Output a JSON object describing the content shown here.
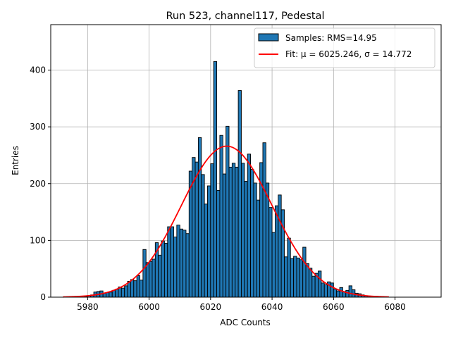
{
  "chart_data": {
    "type": "bar",
    "title": "Run 523, channel117, Pedestal",
    "xlabel": "ADC Counts",
    "ylabel": "Entries",
    "xlim": [
      5968,
      6095
    ],
    "ylim": [
      0,
      480
    ],
    "xticks": [
      5980,
      6000,
      6020,
      6040,
      6060,
      6080
    ],
    "yticks": [
      0,
      100,
      200,
      300,
      400
    ],
    "grid": true,
    "legend_position": "top-right",
    "histogram": {
      "name": "Samples: RMS=14.95",
      "color": "#1f77b4",
      "edgecolor": "#000000",
      "bin_width": 1,
      "bins": [
        {
          "x": 5979,
          "y": 1
        },
        {
          "x": 5980,
          "y": 3
        },
        {
          "x": 5981,
          "y": 4
        },
        {
          "x": 5982,
          "y": 9
        },
        {
          "x": 5983,
          "y": 10
        },
        {
          "x": 5984,
          "y": 11
        },
        {
          "x": 5985,
          "y": 7
        },
        {
          "x": 5986,
          "y": 8
        },
        {
          "x": 5987,
          "y": 9
        },
        {
          "x": 5988,
          "y": 12
        },
        {
          "x": 5989,
          "y": 14
        },
        {
          "x": 5990,
          "y": 18
        },
        {
          "x": 5991,
          "y": 16
        },
        {
          "x": 5992,
          "y": 20
        },
        {
          "x": 5993,
          "y": 28
        },
        {
          "x": 5994,
          "y": 31
        },
        {
          "x": 5995,
          "y": 29
        },
        {
          "x": 5996,
          "y": 38
        },
        {
          "x": 5997,
          "y": 30
        },
        {
          "x": 5998,
          "y": 84
        },
        {
          "x": 5999,
          "y": 61
        },
        {
          "x": 6000,
          "y": 63
        },
        {
          "x": 6001,
          "y": 67
        },
        {
          "x": 6002,
          "y": 96
        },
        {
          "x": 6003,
          "y": 74
        },
        {
          "x": 6004,
          "y": 99
        },
        {
          "x": 6005,
          "y": 95
        },
        {
          "x": 6006,
          "y": 124
        },
        {
          "x": 6007,
          "y": 124
        },
        {
          "x": 6008,
          "y": 106
        },
        {
          "x": 6009,
          "y": 127
        },
        {
          "x": 6010,
          "y": 120
        },
        {
          "x": 6011,
          "y": 118
        },
        {
          "x": 6012,
          "y": 112
        },
        {
          "x": 6013,
          "y": 222
        },
        {
          "x": 6014,
          "y": 246
        },
        {
          "x": 6015,
          "y": 238
        },
        {
          "x": 6016,
          "y": 281
        },
        {
          "x": 6017,
          "y": 216
        },
        {
          "x": 6018,
          "y": 164
        },
        {
          "x": 6019,
          "y": 196
        },
        {
          "x": 6020,
          "y": 235
        },
        {
          "x": 6021,
          "y": 415
        },
        {
          "x": 6022,
          "y": 188
        },
        {
          "x": 6023,
          "y": 285
        },
        {
          "x": 6024,
          "y": 217
        },
        {
          "x": 6025,
          "y": 301
        },
        {
          "x": 6026,
          "y": 229
        },
        {
          "x": 6027,
          "y": 236
        },
        {
          "x": 6028,
          "y": 229
        },
        {
          "x": 6029,
          "y": 364
        },
        {
          "x": 6030,
          "y": 236
        },
        {
          "x": 6031,
          "y": 204
        },
        {
          "x": 6032,
          "y": 252
        },
        {
          "x": 6033,
          "y": 225
        },
        {
          "x": 6034,
          "y": 201
        },
        {
          "x": 6035,
          "y": 171
        },
        {
          "x": 6036,
          "y": 237
        },
        {
          "x": 6037,
          "y": 272
        },
        {
          "x": 6038,
          "y": 201
        },
        {
          "x": 6039,
          "y": 158
        },
        {
          "x": 6040,
          "y": 114
        },
        {
          "x": 6041,
          "y": 161
        },
        {
          "x": 6042,
          "y": 180
        },
        {
          "x": 6043,
          "y": 154
        },
        {
          "x": 6044,
          "y": 71
        },
        {
          "x": 6045,
          "y": 104
        },
        {
          "x": 6046,
          "y": 68
        },
        {
          "x": 6047,
          "y": 72
        },
        {
          "x": 6048,
          "y": 69
        },
        {
          "x": 6049,
          "y": 66
        },
        {
          "x": 6050,
          "y": 88
        },
        {
          "x": 6051,
          "y": 59
        },
        {
          "x": 6052,
          "y": 51
        },
        {
          "x": 6053,
          "y": 37
        },
        {
          "x": 6054,
          "y": 42
        },
        {
          "x": 6055,
          "y": 46
        },
        {
          "x": 6056,
          "y": 25
        },
        {
          "x": 6057,
          "y": 22
        },
        {
          "x": 6058,
          "y": 27
        },
        {
          "x": 6059,
          "y": 25
        },
        {
          "x": 6060,
          "y": 14
        },
        {
          "x": 6061,
          "y": 11
        },
        {
          "x": 6062,
          "y": 17
        },
        {
          "x": 6063,
          "y": 10
        },
        {
          "x": 6064,
          "y": 12
        },
        {
          "x": 6065,
          "y": 20
        },
        {
          "x": 6066,
          "y": 13
        },
        {
          "x": 6067,
          "y": 7
        },
        {
          "x": 6068,
          "y": 6
        },
        {
          "x": 6069,
          "y": 4
        },
        {
          "x": 6070,
          "y": 2
        },
        {
          "x": 6071,
          "y": 2
        },
        {
          "x": 6072,
          "y": 1
        }
      ]
    },
    "fit": {
      "type": "gaussian",
      "name": "Fit: μ = 6025.246, σ = 14.772",
      "color": "#ff0000",
      "mu": 6025.246,
      "sigma": 14.772,
      "amplitude": 266,
      "x_range": [
        5972,
        6078
      ]
    }
  }
}
